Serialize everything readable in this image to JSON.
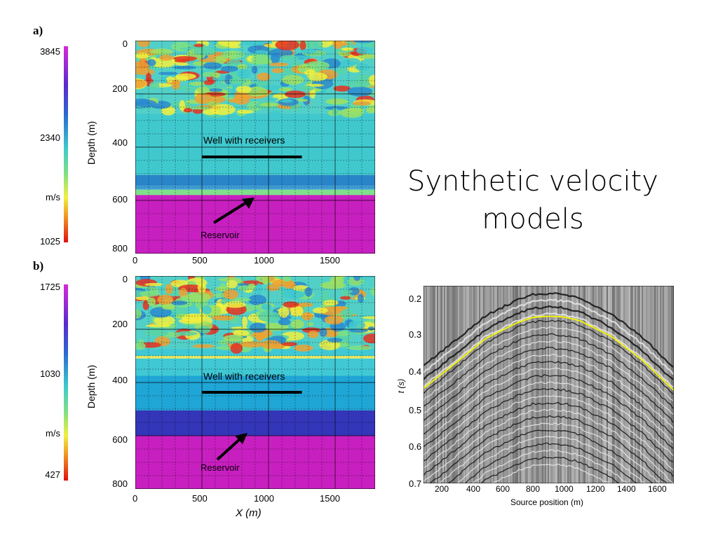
{
  "slide": {
    "title_line1": "Synthetic velocity",
    "title_line2": "models"
  },
  "panels": [
    {
      "tag": "a)",
      "colorbar": {
        "max_label": "3845",
        "mid_label": "2340",
        "unit_label": "m/s",
        "min_label": "1025"
      },
      "depth_ticks": [
        "0",
        "200",
        "400",
        "600",
        "800"
      ],
      "x_ticks": [
        "0",
        "500",
        "1000",
        "1500"
      ],
      "ylabel": "Depth (m)",
      "well_label": "Well with receivers",
      "reservoir_label": "Reservoir",
      "chart_data": {
        "type": "heatmap",
        "xlim": [
          0,
          1800
        ],
        "ylim": [
          0,
          800
        ],
        "ylabel": "Depth (m)",
        "color_range": [
          1025,
          3845
        ],
        "well_x": [
          500,
          1250
        ],
        "well_depth": 437,
        "layers": [
          {
            "top": 0,
            "bottom": 275,
            "kind": "heterogeneous"
          },
          {
            "top": 275,
            "bottom": 505,
            "color": "#3fc9cf"
          },
          {
            "top": 505,
            "bottom": 545,
            "color": "#2a84c8"
          },
          {
            "top": 545,
            "bottom": 560,
            "color": "#3fa0d8"
          },
          {
            "top": 560,
            "bottom": 580,
            "color": "#7fe08a"
          },
          {
            "top": 580,
            "bottom": 800,
            "color": "#c81fc0"
          }
        ]
      }
    },
    {
      "tag": "b)",
      "colorbar": {
        "max_label": "1725",
        "mid_label": "1030",
        "unit_label": "m/s",
        "min_label": "427"
      },
      "depth_ticks": [
        "0",
        "200",
        "400",
        "600",
        "800"
      ],
      "x_ticks": [
        "0",
        "500",
        "1000",
        "1500"
      ],
      "ylabel": "Depth (m)",
      "xlabel": "X (m)",
      "well_label": "Well with receivers",
      "reservoir_label": "Reservoir",
      "chart_data": {
        "type": "heatmap",
        "xlim": [
          0,
          1800
        ],
        "ylim": [
          0,
          800
        ],
        "ylabel": "Depth (m)",
        "xlabel": "X (m)",
        "color_range": [
          427,
          1725
        ],
        "well_x": [
          500,
          1250
        ],
        "well_depth": 437,
        "layers": [
          {
            "top": 0,
            "bottom": 275,
            "kind": "heterogeneous"
          },
          {
            "top": 275,
            "bottom": 300,
            "color": "#40c8d4"
          },
          {
            "top": 300,
            "bottom": 310,
            "color": "#e8e860"
          },
          {
            "top": 310,
            "bottom": 375,
            "color": "#40c8d4"
          },
          {
            "top": 375,
            "bottom": 505,
            "color": "#1fa6d6"
          },
          {
            "top": 505,
            "bottom": 600,
            "color": "#3336b8"
          },
          {
            "top": 600,
            "bottom": 800,
            "color": "#c81fc0"
          }
        ]
      }
    }
  ],
  "seismic": {
    "y_ticks": [
      "0.2",
      "0.3",
      "0.4",
      "0.5",
      "0.6",
      "0.7"
    ],
    "x_ticks": [
      "200",
      "400",
      "600",
      "800",
      "1000",
      "1200",
      "1400",
      "1600"
    ],
    "xlabel": "Source position (m)",
    "ylabel": "t (s)",
    "chart_data": {
      "type": "line",
      "xlim": [
        100,
        1700
      ],
      "ylim": [
        0.18,
        0.7
      ],
      "xlabel": "Source position (m)",
      "ylabel": "t (s)",
      "series": [
        {
          "color": "#f2f20a",
          "x": [
            100,
            300,
            500,
            700,
            800,
            900,
            1000,
            1100,
            1300,
            1500,
            1700
          ],
          "y": [
            0.45,
            0.385,
            0.318,
            0.277,
            0.263,
            0.26,
            0.262,
            0.272,
            0.313,
            0.376,
            0.455
          ]
        }
      ]
    }
  }
}
